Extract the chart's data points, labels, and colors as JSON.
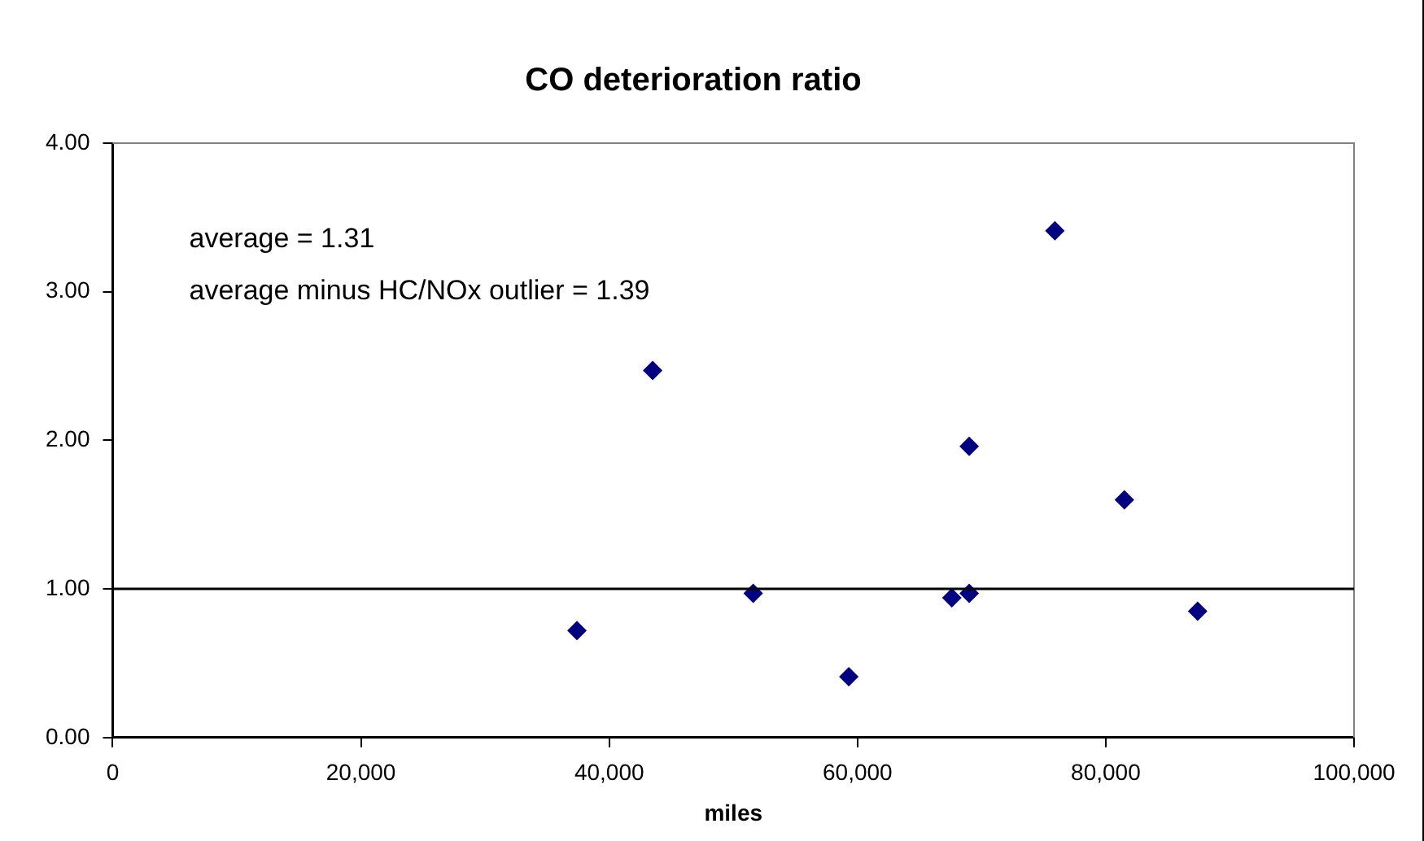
{
  "chart_data": {
    "type": "scatter",
    "title": "CO deterioration ratio",
    "xlabel": "miles",
    "x": [
      37400,
      43500,
      51600,
      59300,
      67600,
      69000,
      69000,
      75900,
      81500,
      87400
    ],
    "series": [
      {
        "color": "#000080",
        "values": [
          0.72,
          2.47,
          0.97,
          0.41,
          0.94,
          0.97,
          1.96,
          3.41,
          1.6,
          0.85
        ]
      }
    ],
    "xlim": [
      0,
      100000
    ],
    "xticks": [
      0,
      {
        "value": 20000,
        "label": "20,000"
      },
      {
        "value": 40000,
        "label": "40,000"
      },
      {
        "value": 60000,
        "label": "60,000"
      },
      {
        "value": 80000,
        "label": "80,000"
      },
      {
        "value": 100000,
        "label": "100,000"
      }
    ],
    "ylim": [
      0,
      4
    ],
    "yticks": [
      {
        "value": 0,
        "label": "0.00"
      },
      {
        "value": 1,
        "label": "1.00"
      },
      {
        "value": 2,
        "label": "2.00"
      },
      {
        "value": 3,
        "label": "3.00"
      },
      {
        "value": 4,
        "label": "4.00"
      }
    ],
    "ref_lines": [
      {
        "axis": "y",
        "value": 1,
        "color": "#000000"
      }
    ],
    "annotations": [
      "average = 1.31",
      "average minus HC/NOx outlier = 1.39"
    ],
    "marker": "diamond",
    "grid": false,
    "legend": false
  }
}
